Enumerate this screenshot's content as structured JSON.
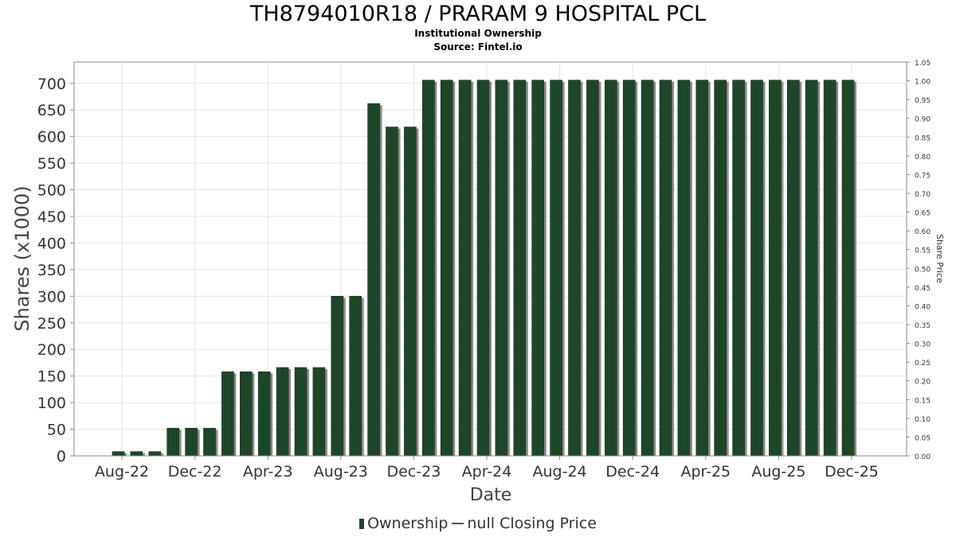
{
  "title": "TH8794010R18 / PRARAM 9 HOSPITAL PCL",
  "subtitle1": "Institutional Ownership",
  "subtitle2": "Source: Fintel.io",
  "legend": {
    "ownership": "Ownership",
    "price": "null Closing Price"
  },
  "colors": {
    "bar": "#1e4a2a",
    "bar_shadow": "#8a8a8a",
    "grid": "#e3e3e3",
    "axis": "#888888"
  },
  "chart_data": {
    "type": "bar",
    "xlabel": "Date",
    "ylabel": "Shares (x1000)",
    "y2label": "Share Price",
    "ylim": [
      0,
      740
    ],
    "y_ticks": [
      "0",
      "50",
      "100",
      "150",
      "200",
      "250",
      "300",
      "350",
      "400",
      "450",
      "500",
      "550",
      "600",
      "650",
      "700"
    ],
    "y2lim": [
      0,
      1.05
    ],
    "y2_ticks": [
      "0.00",
      "0.05",
      "0.10",
      "0.15",
      "0.20",
      "0.25",
      "0.30",
      "0.35",
      "0.40",
      "0.45",
      "0.50",
      "0.55",
      "0.60",
      "0.65",
      "0.70",
      "0.75",
      "0.80",
      "0.85",
      "0.90",
      "0.95",
      "1.00",
      "1.05"
    ],
    "x_tick_labels": [
      "Aug-22",
      "Dec-22",
      "Apr-23",
      "Aug-23",
      "Dec-23",
      "Apr-24",
      "Aug-24",
      "Dec-24",
      "Apr-25",
      "Aug-25",
      "Dec-25"
    ],
    "grid": true,
    "legend_position": "bottom",
    "series": [
      {
        "name": "Ownership",
        "values": [
          8,
          8,
          8,
          52,
          52,
          52,
          158,
          158,
          158,
          166,
          166,
          166,
          300,
          300,
          662,
          618,
          618,
          706,
          706,
          706,
          706,
          706,
          706,
          706,
          706,
          706,
          706,
          706,
          706,
          706,
          706,
          706,
          706,
          706,
          706,
          706,
          706,
          706,
          706,
          706,
          706
        ]
      }
    ]
  }
}
